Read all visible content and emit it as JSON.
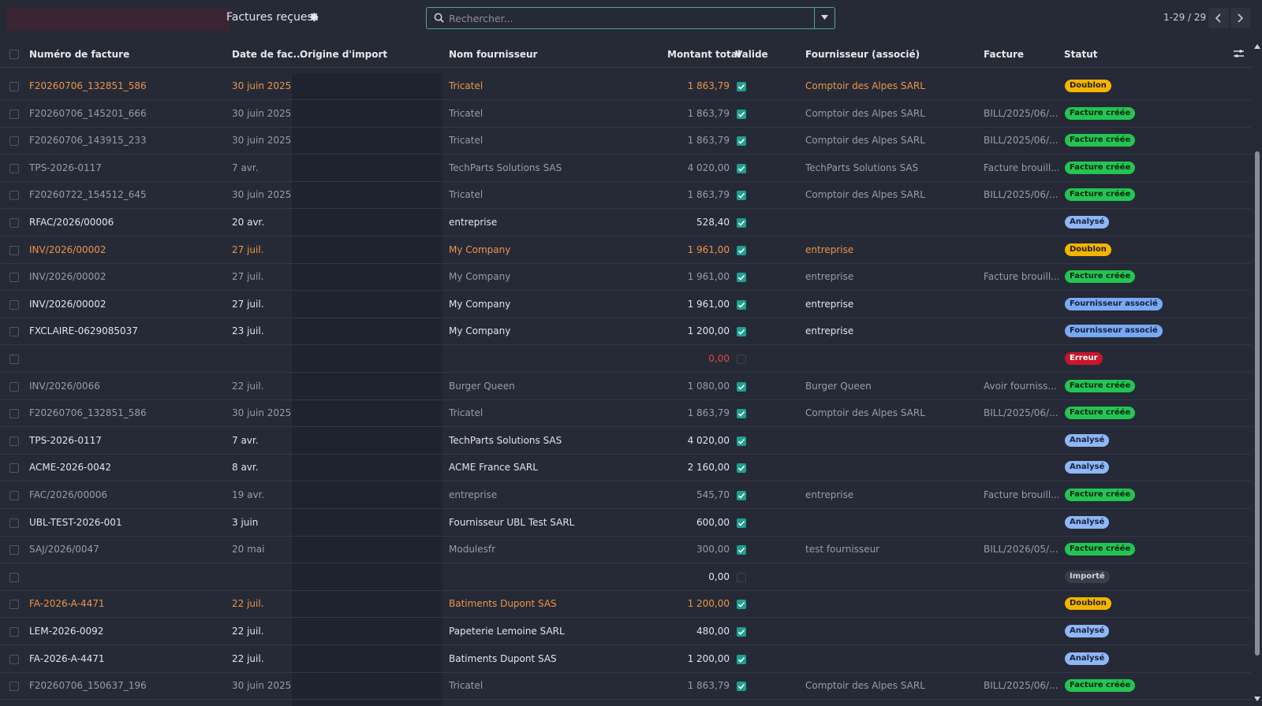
{
  "topbar": {
    "title": "Factures reçues",
    "search_placeholder": "Rechercher...",
    "pager": "1-29 / 29"
  },
  "header": {
    "invoice_number": "Numéro de facture",
    "date": "Date de fac...",
    "origin": "Origine d'import",
    "supplier_name": "Nom fournisseur",
    "total": "Montant total",
    "valid": "Valide",
    "supplier_assoc": "Fournisseur (associé)",
    "invoice": "Facture",
    "status": "Statut"
  },
  "colors": {
    "accent": "#4aa6a3",
    "duplicate_text": "#e9954a",
    "badge_doublon": "#f4b400",
    "badge_created": "#23c552",
    "badge_analyzed": "#8fb6f5",
    "badge_error": "#c8162c"
  },
  "rows": [
    {
      "number": "F20260706_132851_586",
      "date": "30 juin 2025",
      "supplier": "Tricatel",
      "amount": "1 863,79",
      "valid": true,
      "assoc": "Comptoir des Alpes SARL",
      "invoice": "",
      "status": "Doublon",
      "tone": "dup",
      "badge": "dup"
    },
    {
      "number": "F20260706_145201_666",
      "date": "30 juin 2025",
      "supplier": "Tricatel",
      "amount": "1 863,79",
      "valid": true,
      "assoc": "Comptoir des Alpes SARL",
      "invoice": "BILL/2025/06/...",
      "status": "Facture créée",
      "tone": "muted",
      "badge": "ok"
    },
    {
      "number": "F20260706_143915_233",
      "date": "30 juin 2025",
      "supplier": "Tricatel",
      "amount": "1 863,79",
      "valid": true,
      "assoc": "Comptoir des Alpes SARL",
      "invoice": "BILL/2025/06/...",
      "status": "Facture créée",
      "tone": "muted",
      "badge": "ok"
    },
    {
      "number": "TPS-2026-0117",
      "date": "7 avr.",
      "supplier": "TechParts Solutions SAS",
      "amount": "4 020,00",
      "valid": true,
      "assoc": "TechParts Solutions SAS",
      "invoice": "Facture brouill...",
      "status": "Facture créée",
      "tone": "muted",
      "badge": "ok"
    },
    {
      "number": "F20260722_154512_645",
      "date": "30 juin 2025",
      "supplier": "Tricatel",
      "amount": "1 863,79",
      "valid": true,
      "assoc": "Comptoir des Alpes SARL",
      "invoice": "BILL/2025/06/...",
      "status": "Facture créée",
      "tone": "muted",
      "badge": "ok"
    },
    {
      "number": "RFAC/2026/00006",
      "date": "20 avr.",
      "supplier": "entreprise",
      "amount": "528,40",
      "valid": true,
      "assoc": "",
      "invoice": "",
      "status": "Analysé",
      "tone": "bright",
      "badge": "an"
    },
    {
      "number": "INV/2026/00002",
      "date": "27 juil.",
      "supplier": "My Company",
      "amount": "1 961,00",
      "valid": true,
      "assoc": "entreprise",
      "invoice": "",
      "status": "Doublon",
      "tone": "dup",
      "badge": "dup"
    },
    {
      "number": "INV/2026/00002",
      "date": "27 juil.",
      "supplier": "My Company",
      "amount": "1 961,00",
      "valid": true,
      "assoc": "entreprise",
      "invoice": "Facture brouill...",
      "status": "Facture créée",
      "tone": "muted",
      "badge": "ok"
    },
    {
      "number": "INV/2026/00002",
      "date": "27 juil.",
      "supplier": "My Company",
      "amount": "1 961,00",
      "valid": true,
      "assoc": "entreprise",
      "invoice": "",
      "status": "Fournisseur associé",
      "tone": "bright",
      "badge": "fa"
    },
    {
      "number": "FXCLAIRE-0629085037",
      "date": "23 juil.",
      "supplier": "My Company",
      "amount": "1 200,00",
      "valid": true,
      "assoc": "entreprise",
      "invoice": "",
      "status": "Fournisseur associé",
      "tone": "bright",
      "badge": "fa"
    },
    {
      "number": "",
      "date": "",
      "supplier": "",
      "amount": "0,00",
      "valid": false,
      "assoc": "",
      "invoice": "",
      "status": "Erreur",
      "tone": "bright",
      "badge": "err",
      "amount_error": true
    },
    {
      "number": "INV/2026/0066",
      "date": "22 juil.",
      "supplier": "Burger Queen",
      "amount": "1 080,00",
      "valid": true,
      "assoc": "Burger Queen",
      "invoice": "Avoir fourniss...",
      "status": "Facture créée",
      "tone": "muted",
      "badge": "ok"
    },
    {
      "number": "F20260706_132851_586",
      "date": "30 juin 2025",
      "supplier": "Tricatel",
      "amount": "1 863,79",
      "valid": true,
      "assoc": "Comptoir des Alpes SARL",
      "invoice": "BILL/2025/06/...",
      "status": "Facture créée",
      "tone": "muted",
      "badge": "ok"
    },
    {
      "number": "TPS-2026-0117",
      "date": "7 avr.",
      "supplier": "TechParts Solutions SAS",
      "amount": "4 020,00",
      "valid": true,
      "assoc": "",
      "invoice": "",
      "status": "Analysé",
      "tone": "bright",
      "badge": "an"
    },
    {
      "number": "ACME-2026-0042",
      "date": "8 avr.",
      "supplier": "ACME France SARL",
      "amount": "2 160,00",
      "valid": true,
      "assoc": "",
      "invoice": "",
      "status": "Analysé",
      "tone": "bright",
      "badge": "an"
    },
    {
      "number": "FAC/2026/00006",
      "date": "19 avr.",
      "supplier": "entreprise",
      "amount": "545,70",
      "valid": true,
      "assoc": "entreprise",
      "invoice": "Facture brouill...",
      "status": "Facture créée",
      "tone": "muted",
      "badge": "ok"
    },
    {
      "number": "UBL-TEST-2026-001",
      "date": "3 juin",
      "supplier": "Fournisseur UBL Test SARL",
      "amount": "600,00",
      "valid": true,
      "assoc": "",
      "invoice": "",
      "status": "Analysé",
      "tone": "bright",
      "badge": "an"
    },
    {
      "number": "SAJ/2026/0047",
      "date": "20 mai",
      "supplier": "Modulesfr",
      "amount": "300,00",
      "valid": true,
      "assoc": "test fournisseur",
      "invoice": "BILL/2026/05/...",
      "status": "Facture créée",
      "tone": "muted",
      "badge": "ok"
    },
    {
      "number": "",
      "date": "",
      "supplier": "",
      "amount": "0,00",
      "valid": false,
      "assoc": "",
      "invoice": "",
      "status": "Importé",
      "tone": "bright",
      "badge": "imp"
    },
    {
      "number": "FA-2026-A-4471",
      "date": "22 juil.",
      "supplier": "Batiments Dupont SAS",
      "amount": "1 200,00",
      "valid": true,
      "assoc": "",
      "invoice": "",
      "status": "Doublon",
      "tone": "dup",
      "badge": "dup"
    },
    {
      "number": "LEM-2026-0092",
      "date": "22 juil.",
      "supplier": "Papeterie Lemoine SARL",
      "amount": "480,00",
      "valid": true,
      "assoc": "",
      "invoice": "",
      "status": "Analysé",
      "tone": "bright",
      "badge": "an"
    },
    {
      "number": "FA-2026-A-4471",
      "date": "22 juil.",
      "supplier": "Batiments Dupont SAS",
      "amount": "1 200,00",
      "valid": true,
      "assoc": "",
      "invoice": "",
      "status": "Analysé",
      "tone": "bright",
      "badge": "an"
    },
    {
      "number": "F20260706_150637_196",
      "date": "30 juin 2025",
      "supplier": "Tricatel",
      "amount": "1 863,79",
      "valid": true,
      "assoc": "Comptoir des Alpes SARL",
      "invoice": "BILL/2025/06/...",
      "status": "Facture créée",
      "tone": "muted",
      "badge": "ok"
    }
  ]
}
